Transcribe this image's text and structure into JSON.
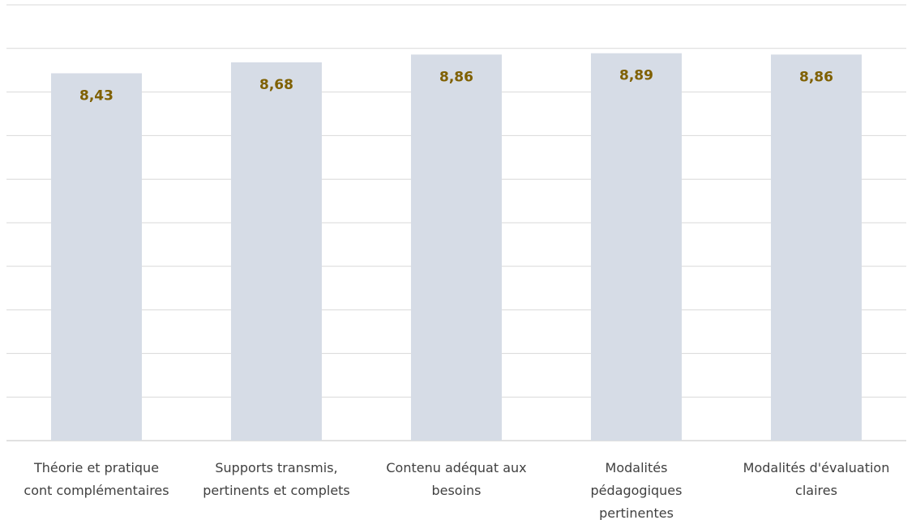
{
  "chart_data": {
    "type": "bar",
    "title": "",
    "xlabel": "",
    "ylabel": "",
    "categories": [
      [
        "Théorie et pratique",
        "cont complémentaires"
      ],
      [
        "Supports transmis,",
        "pertinents et complets"
      ],
      [
        "Contenu adéquat aux",
        "besoins"
      ],
      [
        "Modalités",
        "pédagogiques",
        "pertinentes"
      ],
      [
        "Modalités d'évaluation",
        "claires"
      ]
    ],
    "values": [
      8.43,
      8.68,
      8.86,
      8.89,
      8.86
    ],
    "value_labels": [
      "8,43",
      "8,68",
      "8,86",
      "8,89",
      "8,86"
    ],
    "ylim": [
      0,
      10
    ],
    "grid": true,
    "y_axis_visible": false,
    "bar_color": "#d6dce6",
    "value_label_color": "#7f6000",
    "legend": "none"
  }
}
